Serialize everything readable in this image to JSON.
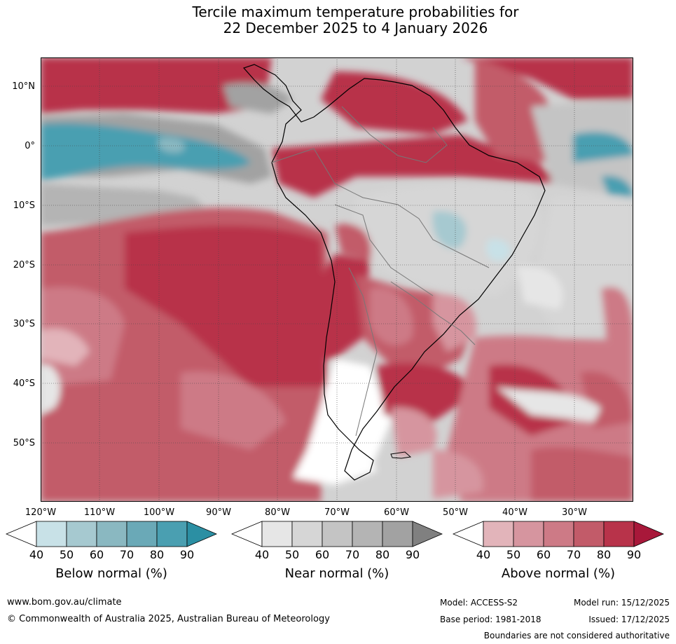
{
  "title": {
    "line1": "Tercile maximum temperature probabilities for",
    "line2": "22 December 2025 to 4 January 2026"
  },
  "map": {
    "region": "South America and surrounding oceans",
    "lat_labels": [
      "10°N",
      "0°",
      "10°S",
      "20°S",
      "30°S",
      "40°S",
      "50°S"
    ],
    "lon_labels": [
      "120°W",
      "110°W",
      "100°W",
      "90°W",
      "80°W",
      "70°W",
      "60°W",
      "50°W",
      "40°W",
      "30°W"
    ]
  },
  "legend": {
    "bins": [
      "40",
      "50",
      "60",
      "70",
      "80",
      "90"
    ],
    "below": {
      "label": "Below normal (%)",
      "colors": [
        "#ffffff",
        "#c8e1e7",
        "#a6c9d0",
        "#8ab8c1",
        "#6aa9b7",
        "#4a9fb1",
        "#2b8fa3"
      ]
    },
    "near": {
      "label": "Near normal (%)",
      "colors": [
        "#ffffff",
        "#e6e6e6",
        "#d6d6d6",
        "#c4c4c4",
        "#b4b4b4",
        "#a2a2a2",
        "#808080"
      ]
    },
    "above": {
      "label": "Above normal (%)",
      "colors": [
        "#ffffff",
        "#e2b4ba",
        "#d6959f",
        "#cd7a86",
        "#c25b69",
        "#b8334a",
        "#a8183a"
      ]
    }
  },
  "footer": {
    "website": "www.bom.gov.au/climate",
    "copyright": "© Commonwealth of Australia 2025, Australian Bureau of Meteorology",
    "model": "Model: ACCESS-S2",
    "base_period": "Base period: 1981-2018",
    "model_run": "Model run: 15/12/2025",
    "issued": "Issued: 17/12/2025",
    "disclaimer": "Boundaries are not considered authoritative"
  }
}
